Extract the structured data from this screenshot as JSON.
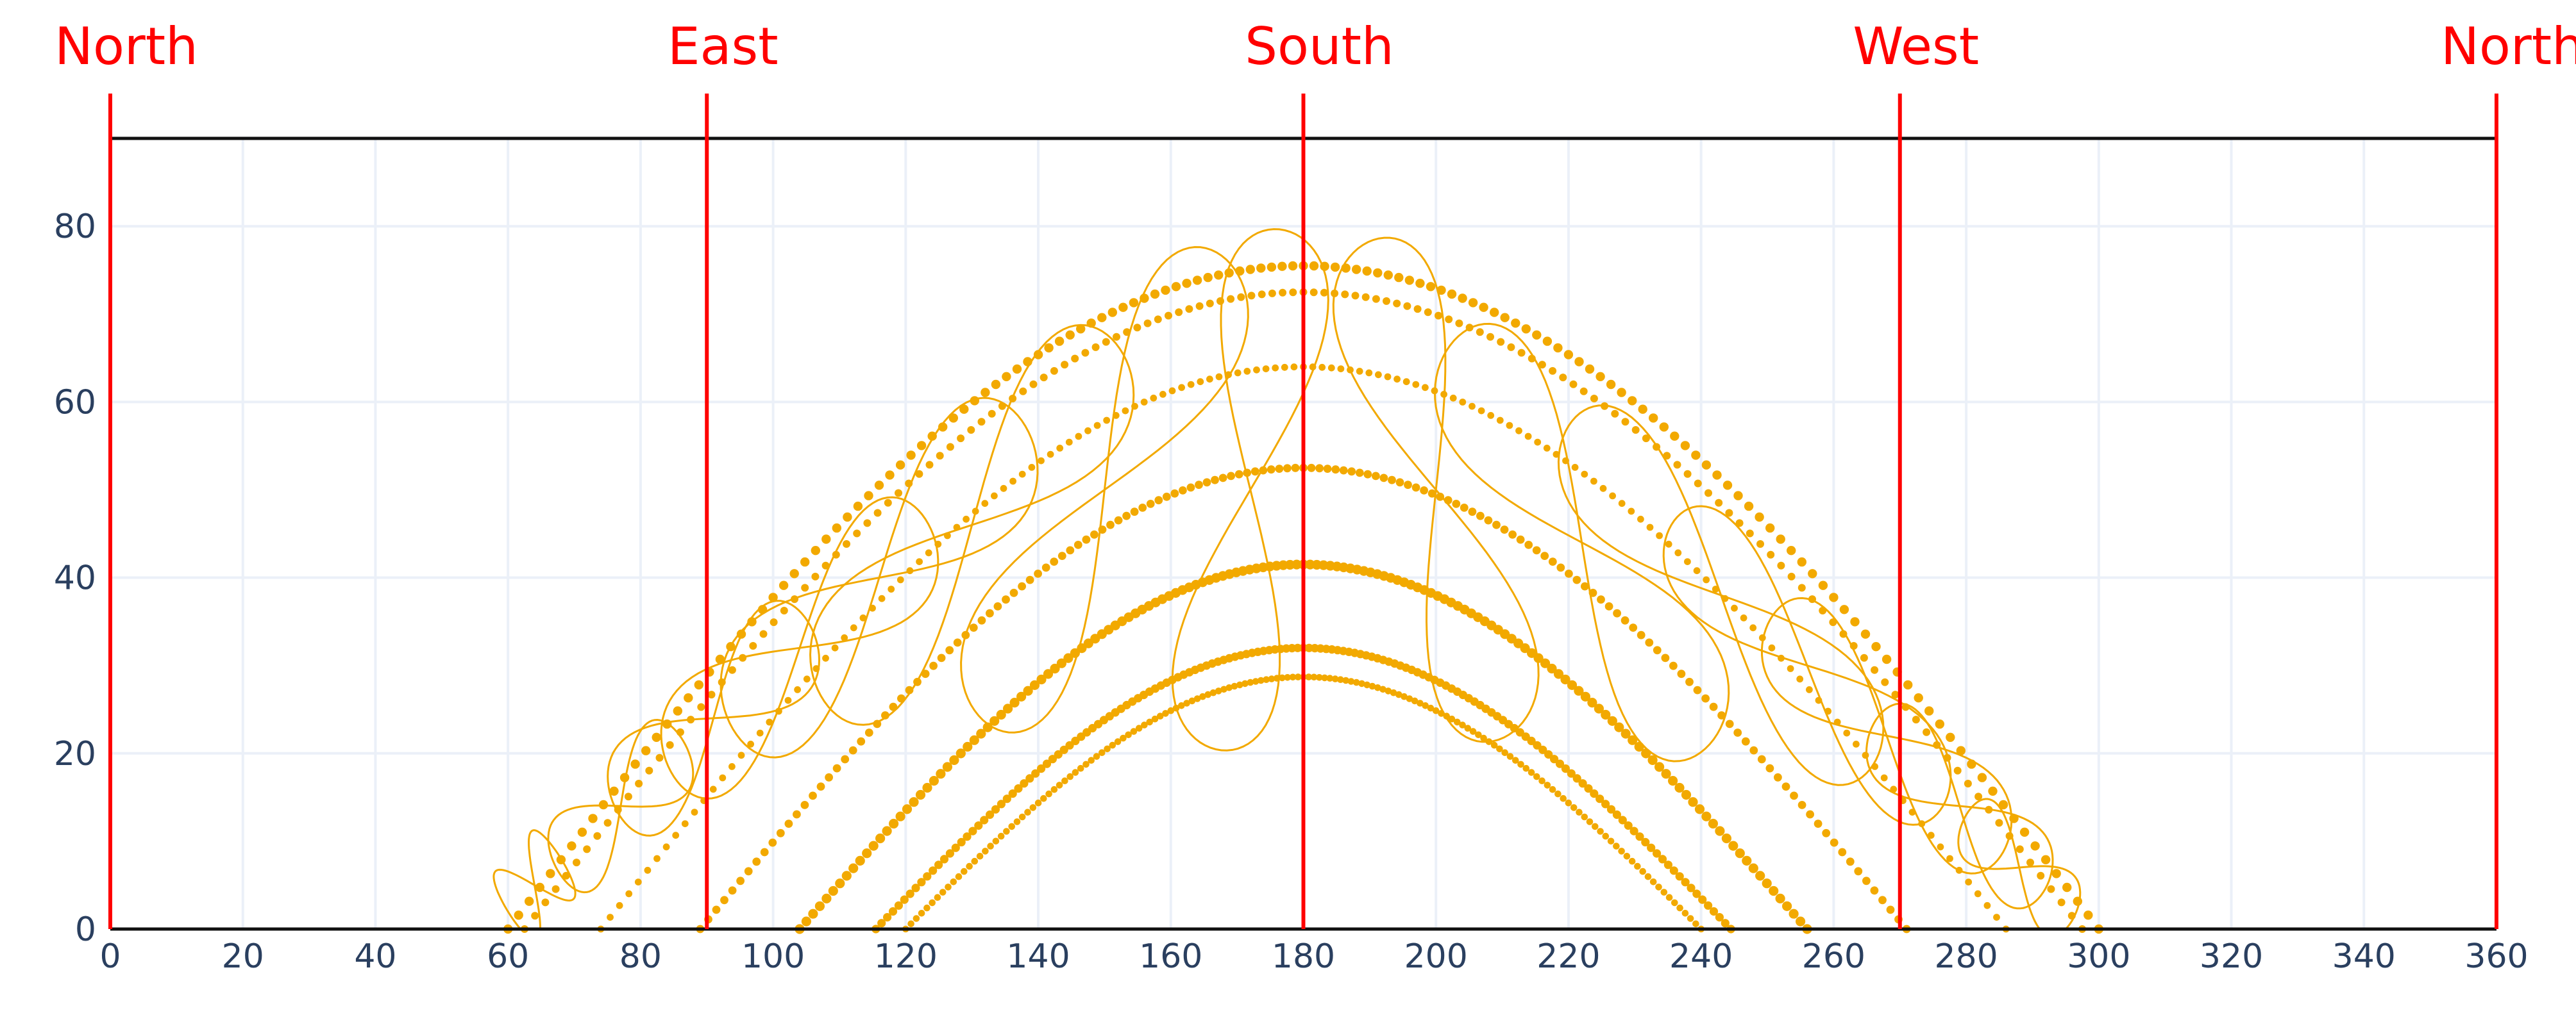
{
  "chart_data": {
    "type": "scatter",
    "title": "",
    "xlabel": "",
    "ylabel": "",
    "xlim": [
      0,
      360
    ],
    "ylim": [
      0,
      90
    ],
    "grid": true,
    "x_ticks": [
      "0",
      "20",
      "40",
      "60",
      "80",
      "100",
      "120",
      "140",
      "160",
      "180",
      "200",
      "220",
      "240",
      "260",
      "280",
      "300",
      "320",
      "340",
      "360"
    ],
    "y_ticks": [
      "0",
      "20",
      "40",
      "60",
      "80"
    ],
    "direction_markers": [
      {
        "label": "North",
        "x": 0
      },
      {
        "label": "East",
        "x": 90
      },
      {
        "label": "South",
        "x": 180
      },
      {
        "label": "West",
        "x": 270
      },
      {
        "label": "North",
        "x": 360
      }
    ],
    "colors": {
      "series": "#f2a900",
      "markers": "#ff0000",
      "axis": "#111111",
      "grid": "#ebf0f8",
      "tick_text": "#2a3f5f"
    },
    "series": [
      {
        "max_altitude": 75.5,
        "sunrise_azimuth": 60.0,
        "noon_azimuth": 180,
        "sunset_azimuth": 300.0
      },
      {
        "max_altitude": 72.5,
        "sunrise_azimuth": 62.5,
        "noon_azimuth": 180,
        "sunset_azimuth": 297.5
      },
      {
        "max_altitude": 64.0,
        "sunrise_azimuth": 74.0,
        "noon_azimuth": 180,
        "sunset_azimuth": 286.0
      },
      {
        "max_altitude": 52.5,
        "sunrise_azimuth": 89.0,
        "noon_azimuth": 180,
        "sunset_azimuth": 271.0
      },
      {
        "max_altitude": 41.5,
        "sunrise_azimuth": 104.0,
        "noon_azimuth": 180,
        "sunset_azimuth": 256.0
      },
      {
        "max_altitude": 32.0,
        "sunrise_azimuth": 115.5,
        "noon_azimuth": 180,
        "sunset_azimuth": 244.5
      },
      {
        "max_altitude": 28.7,
        "sunrise_azimuth": 120.0,
        "noon_azimuth": 180,
        "sunset_azimuth": 240.0
      }
    ],
    "analemmas": [
      {
        "center": [
          64,
          5
        ],
        "a": 5,
        "b": 5,
        "angle": 40
      },
      {
        "center": [
          77,
          14
        ],
        "a": 12,
        "b": 5,
        "angle": 38
      },
      {
        "center": [
          91,
          24
        ],
        "a": 18,
        "b": 6,
        "angle": 36
      },
      {
        "center": [
          104,
          32
        ],
        "a": 24,
        "b": 7,
        "angle": 36
      },
      {
        "center": [
          116,
          40
        ],
        "a": 28,
        "b": 8,
        "angle": 38
      },
      {
        "center": [
          130,
          46
        ],
        "a": 30,
        "b": 8,
        "angle": 42
      },
      {
        "center": [
          150,
          50
        ],
        "a": 32,
        "b": 8,
        "angle": 55
      },
      {
        "center": [
          172,
          50
        ],
        "a": 30,
        "b": 8,
        "angle": 80
      },
      {
        "center": [
          200,
          50
        ],
        "a": 30,
        "b": 8,
        "angle": 110
      },
      {
        "center": [
          222,
          44
        ],
        "a": 30,
        "b": 8,
        "angle": 130
      },
      {
        "center": [
          243,
          38
        ],
        "a": 30,
        "b": 7,
        "angle": 140
      },
      {
        "center": [
          256,
          30
        ],
        "a": 26,
        "b": 6,
        "angle": 142
      },
      {
        "center": [
          268,
          22
        ],
        "a": 22,
        "b": 6,
        "angle": 143
      },
      {
        "center": [
          279,
          14
        ],
        "a": 16,
        "b": 5,
        "angle": 144
      },
      {
        "center": [
          288,
          7
        ],
        "a": 10,
        "b": 4,
        "angle": 145
      }
    ]
  }
}
